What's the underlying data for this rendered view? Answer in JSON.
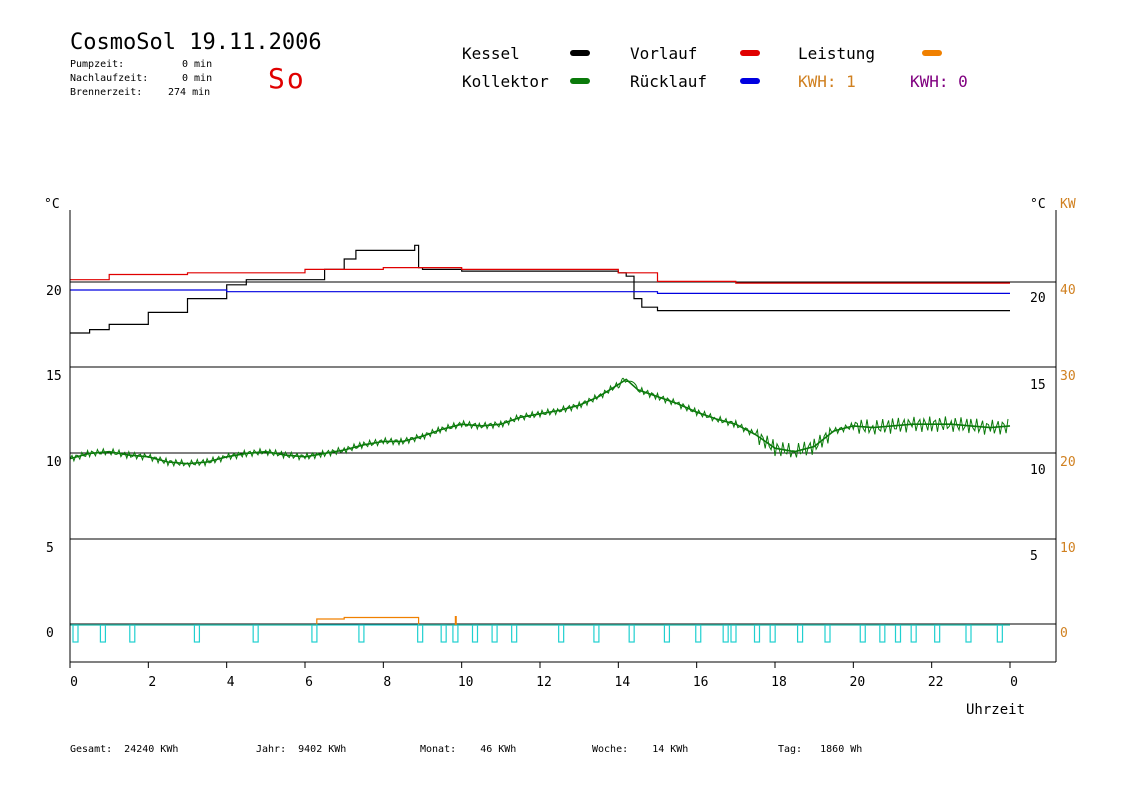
{
  "header": {
    "title": "CosmoSol 19.11.2006",
    "stats": [
      {
        "label": "Pumpzeit:",
        "value": "0 min"
      },
      {
        "label": "Nachlaufzeit:",
        "value": "0 min"
      },
      {
        "label": "Brennerzeit:",
        "value": "274 min"
      }
    ],
    "day": "So"
  },
  "legend": {
    "kessel": "Kessel",
    "kollektor": "Kollektor",
    "vorlauf": "Vorlauf",
    "ruecklauf": "Rücklauf",
    "leistung": "Leistung",
    "kwh1": "KWH: 1",
    "kwh2": "KWH: 0"
  },
  "colors": {
    "kessel": "#000000",
    "kollektor": "#0a7a0a",
    "vorlauf": "#e00000",
    "ruecklauf": "#0000e0",
    "leistung": "#f08000",
    "kwh1": "#d08020",
    "kwh2": "#800080",
    "pump": "#20d0d0"
  },
  "footer": {
    "gesamt": "Gesamt:  24240 KWh",
    "jahr": "Jahr:  9402 KWh",
    "monat": "Monat:    46 KWh",
    "woche": "Woche:    14 KWh",
    "tag": "Tag:   1860 Wh"
  },
  "chart_data": {
    "type": "line",
    "title": "CosmoSol 19.11.2006",
    "xlabel": "Uhrzeit",
    "xlim": [
      0,
      24
    ],
    "x_ticks": [
      "0",
      "2",
      "4",
      "6",
      "8",
      "10",
      "12",
      "14",
      "16",
      "18",
      "20",
      "22",
      "0"
    ],
    "ylabel_left": "°C",
    "ylabel_right": "°C",
    "ylabel_right2": "KW",
    "left_tick_labels": [
      "20",
      "15",
      "10",
      "5",
      "0"
    ],
    "right_tick_labels": [
      "20",
      "15",
      "10",
      "5"
    ],
    "right2_tick_labels": [
      "40",
      "30",
      "20",
      "10",
      "0"
    ],
    "series": [
      {
        "name": "Kessel",
        "x": [
          0,
          0.5,
          1,
          2,
          3,
          4,
          4.5,
          6,
          6.5,
          7,
          7.3,
          8,
          8.8,
          8.9,
          9,
          10,
          12,
          14,
          14.2,
          14.4,
          14.6,
          15,
          20,
          24
        ],
        "y": [
          17.5,
          17.7,
          18,
          18.7,
          19.5,
          20.3,
          20.6,
          20.6,
          21.2,
          21.8,
          22.3,
          22.3,
          22.6,
          21.3,
          21.2,
          21.1,
          21.1,
          21,
          20.8,
          19.5,
          19,
          18.8,
          18.8,
          18.8
        ]
      },
      {
        "name": "Vorlauf",
        "x": [
          0,
          1,
          3,
          6,
          8,
          10,
          12,
          14,
          15,
          17,
          20,
          24
        ],
        "y": [
          20.6,
          20.9,
          21,
          21.2,
          21.3,
          21.2,
          21.2,
          21,
          20.5,
          20.4,
          20.4,
          20.4
        ]
      },
      {
        "name": "Rücklauf",
        "x": [
          0,
          2,
          4,
          6,
          8,
          10,
          12,
          14,
          15,
          16,
          18,
          20,
          24
        ],
        "y": [
          20,
          20,
          19.9,
          19.9,
          19.9,
          19.9,
          19.9,
          19.9,
          19.8,
          19.8,
          19.8,
          19.8,
          19.8
        ]
      },
      {
        "name": "Kollektor",
        "x": [
          0,
          0.5,
          1,
          1.5,
          2,
          2.5,
          3,
          3.5,
          4,
          4.5,
          5,
          5.5,
          6,
          6.5,
          7,
          7.5,
          8,
          8.5,
          9,
          9.5,
          10,
          10.5,
          11,
          11.5,
          12,
          12.5,
          13,
          13.5,
          14,
          14.2,
          14.5,
          15,
          15.5,
          16,
          16.5,
          17,
          17.5,
          18,
          18.5,
          19,
          19.5,
          20,
          20.5,
          21,
          21.5,
          22,
          22.5,
          23,
          23.5,
          24
        ],
        "y": [
          10.2,
          10.5,
          10.6,
          10.4,
          10.3,
          10.0,
          9.9,
          10.0,
          10.3,
          10.5,
          10.6,
          10.4,
          10.3,
          10.5,
          10.7,
          11.0,
          11.2,
          11.2,
          11.5,
          11.9,
          12.2,
          12.1,
          12.2,
          12.6,
          12.8,
          13.0,
          13.3,
          13.8,
          14.5,
          14.8,
          14.2,
          13.8,
          13.4,
          12.9,
          12.5,
          12.2,
          11.6,
          10.8,
          10.6,
          10.9,
          11.8,
          12.1,
          12.0,
          12.1,
          12.2,
          12.2,
          12.2,
          12.1,
          12.0,
          12.1
        ]
      },
      {
        "name": "Leistung",
        "x": [
          0,
          6.2,
          6.3,
          7,
          8.8,
          8.9,
          24
        ],
        "y": [
          0,
          0,
          0.8,
          1.0,
          1.0,
          0,
          0
        ]
      }
    ],
    "pump_pulses_h": [
      0,
      0.7,
      1.45,
      3.1,
      4.6,
      6.1,
      7.3,
      8.8,
      9.4,
      9.7,
      10.2,
      10.7,
      11.2,
      12.4,
      13.3,
      14.2,
      15.1,
      15.9,
      16.6,
      16.8,
      17.4,
      17.8,
      18.5,
      19.2,
      20.1,
      20.6,
      21.0,
      21.4,
      22.0,
      22.8,
      23.6
    ],
    "grid": true
  }
}
